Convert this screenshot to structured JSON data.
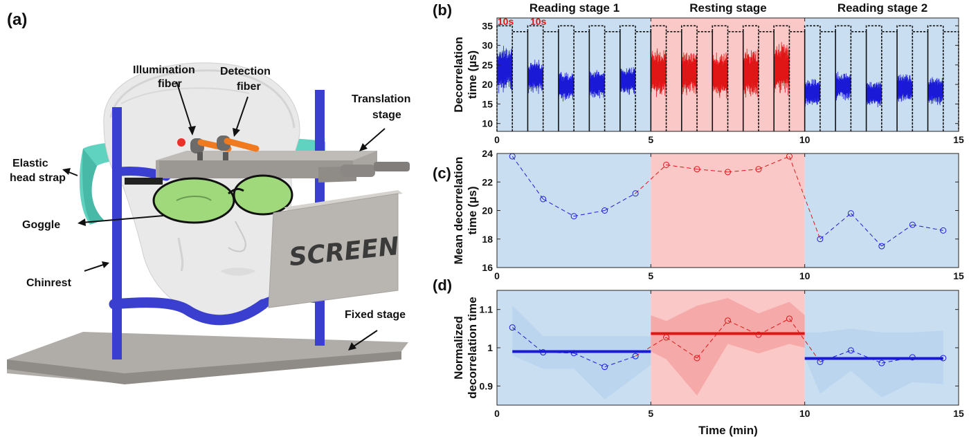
{
  "panels": {
    "a": "(a)",
    "b": "(b)",
    "c": "(c)",
    "d": "(d)"
  },
  "illustration": {
    "callouts": {
      "illumination": [
        "Illumination",
        "fiber"
      ],
      "detection": [
        "Detection",
        "fiber"
      ],
      "translation": [
        "Translation",
        "stage"
      ],
      "strap": [
        "Elastic",
        "head strap"
      ],
      "goggle": "Goggle",
      "chinrest": "Chinrest",
      "fixed": "Fixed stage",
      "screen": "SCREEN"
    },
    "colors": {
      "rod": "#3a3fd0",
      "stage": "#a9a6a2",
      "strap": "#5fd3c0",
      "lens": "#9fd97c",
      "face": "#ececec",
      "screen": "#b9b6b2"
    }
  },
  "stages": [
    "Reading stage 1",
    "Resting stage",
    "Reading stage 2"
  ],
  "xlabel": "Time (min)",
  "colors": {
    "reading_bg": "#c9dff1",
    "resting_bg": "#fbc8c8",
    "reading": "#1a1ad6",
    "resting": "#e01515"
  },
  "chart_data": [
    {
      "id": "b",
      "type": "line",
      "ylabel": [
        "Decorrelation",
        "time (µs)"
      ],
      "xlim": [
        0,
        15
      ],
      "ylim": [
        8,
        37
      ],
      "xticks": [
        0,
        5,
        10,
        15
      ],
      "yticks": [
        10,
        15,
        20,
        25,
        30,
        35
      ],
      "annotations": [
        "10s",
        "10s"
      ],
      "segments": [
        {
          "stage": "reading",
          "start": 0.0,
          "end": 0.5,
          "mean": 24,
          "spread": 6.5
        },
        {
          "stage": "reading",
          "start": 1.0,
          "end": 1.5,
          "mean": 22,
          "spread": 4.5
        },
        {
          "stage": "reading",
          "start": 2.0,
          "end": 2.5,
          "mean": 19.5,
          "spread": 4
        },
        {
          "stage": "reading",
          "start": 3.0,
          "end": 3.5,
          "mean": 20,
          "spread": 4
        },
        {
          "stage": "reading",
          "start": 4.0,
          "end": 4.5,
          "mean": 21,
          "spread": 4
        },
        {
          "stage": "resting",
          "start": 5.0,
          "end": 5.5,
          "mean": 23,
          "spread": 6.5
        },
        {
          "stage": "resting",
          "start": 6.0,
          "end": 6.5,
          "mean": 23,
          "spread": 6
        },
        {
          "stage": "resting",
          "start": 7.0,
          "end": 7.5,
          "mean": 22.5,
          "spread": 6.5
        },
        {
          "stage": "resting",
          "start": 8.0,
          "end": 8.5,
          "mean": 23,
          "spread": 6.5
        },
        {
          "stage": "resting",
          "start": 9.0,
          "end": 9.5,
          "mean": 24,
          "spread": 7
        },
        {
          "stage": "reading",
          "start": 10.0,
          "end": 10.5,
          "mean": 18,
          "spread": 4
        },
        {
          "stage": "reading",
          "start": 11.0,
          "end": 11.5,
          "mean": 19.5,
          "spread": 4
        },
        {
          "stage": "reading",
          "start": 12.0,
          "end": 12.5,
          "mean": 17.5,
          "spread": 3.5
        },
        {
          "stage": "reading",
          "start": 13.0,
          "end": 13.5,
          "mean": 19,
          "spread": 4
        },
        {
          "stage": "reading",
          "start": 14.0,
          "end": 14.5,
          "mean": 18.5,
          "spread": 4
        }
      ],
      "dotted_trace": {
        "low": 8,
        "high": 35,
        "mid": 33.5,
        "times": [
          0.0,
          0.5,
          1.0,
          1.5,
          2.0,
          2.5,
          3.0,
          3.5,
          4.0,
          4.5,
          5.0,
          5.5,
          6.0,
          6.5,
          7.0,
          7.5,
          8.0,
          8.5,
          9.0,
          9.5,
          10.0,
          10.5,
          11.0,
          11.5,
          12.0,
          12.5,
          13.0,
          13.5,
          14.0,
          14.5,
          15.0
        ]
      }
    },
    {
      "id": "c",
      "type": "line",
      "ylabel": [
        "Mean decorrelation",
        "time (µs)"
      ],
      "xlim": [
        0,
        15
      ],
      "ylim": [
        16,
        24
      ],
      "xticks": [
        0,
        5,
        10,
        15
      ],
      "yticks": [
        16,
        18,
        20,
        22,
        24
      ],
      "series": [
        {
          "stage": "reading",
          "x": [
            0.5,
            1.5,
            2.5,
            3.5,
            4.5
          ],
          "y": [
            23.8,
            20.8,
            19.6,
            20.0,
            21.2
          ]
        },
        {
          "stage": "resting",
          "x": [
            5.5,
            6.5,
            7.5,
            8.5,
            9.5
          ],
          "y": [
            23.2,
            22.9,
            22.7,
            22.9,
            23.8
          ]
        },
        {
          "stage": "reading",
          "x": [
            10.5,
            11.5,
            12.5,
            13.5,
            14.5
          ],
          "y": [
            18.0,
            19.8,
            17.5,
            19.0,
            18.6
          ]
        }
      ]
    },
    {
      "id": "d",
      "type": "line",
      "ylabel": [
        "Normalized",
        "decorrelation time"
      ],
      "xlim": [
        0,
        15
      ],
      "ylim": [
        0.85,
        1.15
      ],
      "xticks": [
        0,
        5,
        10,
        15
      ],
      "yticks": [
        0.9,
        1,
        1.1
      ],
      "ytick_labels": [
        "0.9",
        "1",
        "1.1"
      ],
      "series": [
        {
          "stage": "reading",
          "x": [
            0.5,
            1.5,
            2.5,
            3.5,
            4.5
          ],
          "y": [
            1.053,
            0.988,
            0.986,
            0.95,
            0.978
          ],
          "upper": [
            1.11,
            1.03,
            1.03,
            1.03,
            1.03
          ],
          "lower": [
            0.98,
            0.945,
            0.945,
            0.865,
            0.925
          ]
        },
        {
          "stage": "resting",
          "x": [
            5.5,
            6.5,
            7.5,
            8.5,
            9.5
          ],
          "y": [
            1.027,
            0.973,
            1.071,
            1.034,
            1.076
          ],
          "upper": [
            1.07,
            1.11,
            1.13,
            1.09,
            1.12
          ],
          "lower": [
            0.97,
            0.875,
            1.01,
            0.985,
            1.01
          ]
        },
        {
          "stage": "reading",
          "x": [
            10.5,
            11.5,
            12.5,
            13.5,
            14.5
          ],
          "y": [
            0.963,
            0.993,
            0.96,
            0.975,
            0.973
          ],
          "upper": [
            1.04,
            1.05,
            1.04,
            1.04,
            1.045
          ],
          "lower": [
            0.88,
            0.94,
            0.87,
            0.91,
            0.905
          ]
        }
      ],
      "means": [
        {
          "stage": "reading",
          "x0": 0.5,
          "x1": 5.0,
          "y": 0.99
        },
        {
          "stage": "resting",
          "x0": 5.0,
          "x1": 10.0,
          "y": 1.037
        },
        {
          "stage": "reading",
          "x0": 10.0,
          "x1": 14.5,
          "y": 0.972
        }
      ]
    }
  ]
}
